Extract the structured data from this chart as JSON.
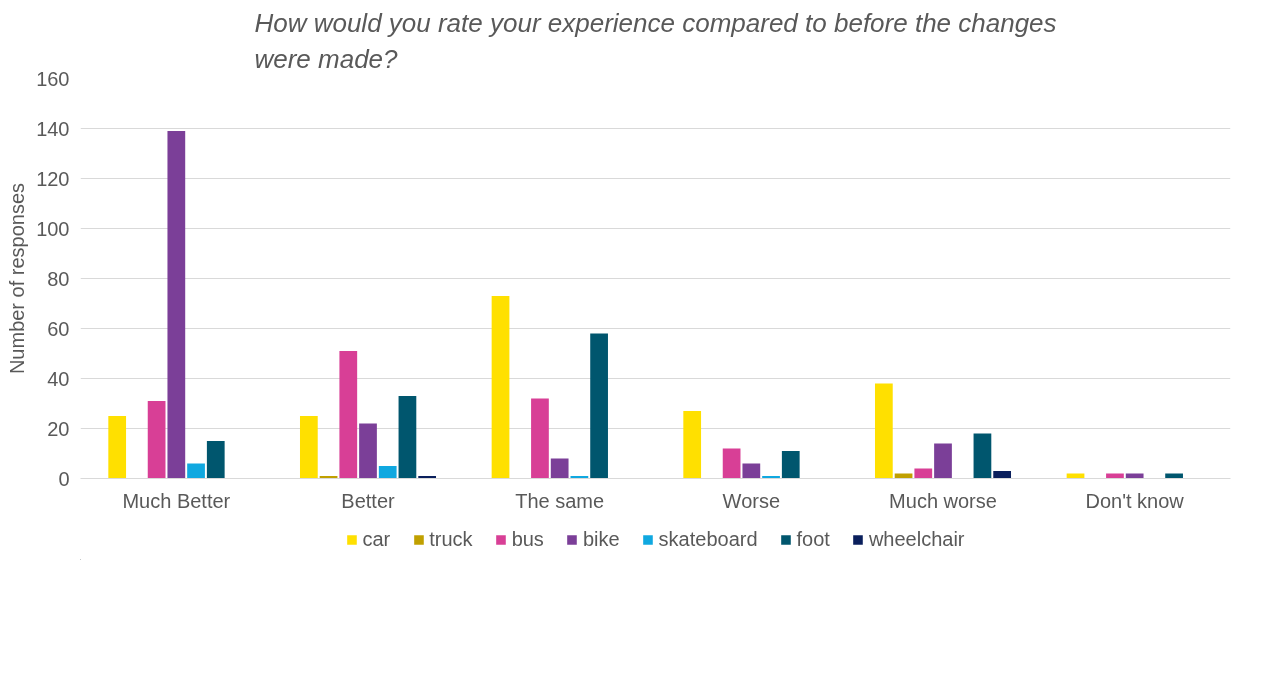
{
  "chart_data": {
    "type": "bar",
    "title": "How would you rate your experience compared to before the changes were made?",
    "ylabel": "Number of responses",
    "categories": [
      "Much Better",
      "Better",
      "The same",
      "Worse",
      "Much worse",
      "Don't know"
    ],
    "series": [
      {
        "name": "car",
        "color": "#ffe000",
        "values": [
          25,
          25,
          73,
          27,
          38,
          2
        ]
      },
      {
        "name": "truck",
        "color": "#c0a000",
        "values": [
          0,
          1,
          0,
          0,
          2,
          0
        ]
      },
      {
        "name": "bus",
        "color": "#d83f96",
        "values": [
          31,
          51,
          32,
          12,
          4,
          2
        ]
      },
      {
        "name": "bike",
        "color": "#7b3f98",
        "values": [
          139,
          22,
          8,
          6,
          14,
          2
        ]
      },
      {
        "name": "skateboard",
        "color": "#10a8e0",
        "values": [
          6,
          5,
          1,
          1,
          0,
          0
        ]
      },
      {
        "name": "foot",
        "color": "#00566e",
        "values": [
          15,
          33,
          58,
          11,
          18,
          2
        ]
      },
      {
        "name": "wheelchair",
        "color": "#0a1f5c",
        "values": [
          0,
          1,
          0,
          0,
          3,
          0
        ]
      }
    ],
    "ylim": [
      0,
      160
    ],
    "yticks": [
      0,
      20,
      40,
      60,
      80,
      100,
      120,
      140,
      160
    ],
    "grid": "y",
    "legend": "bottom"
  }
}
